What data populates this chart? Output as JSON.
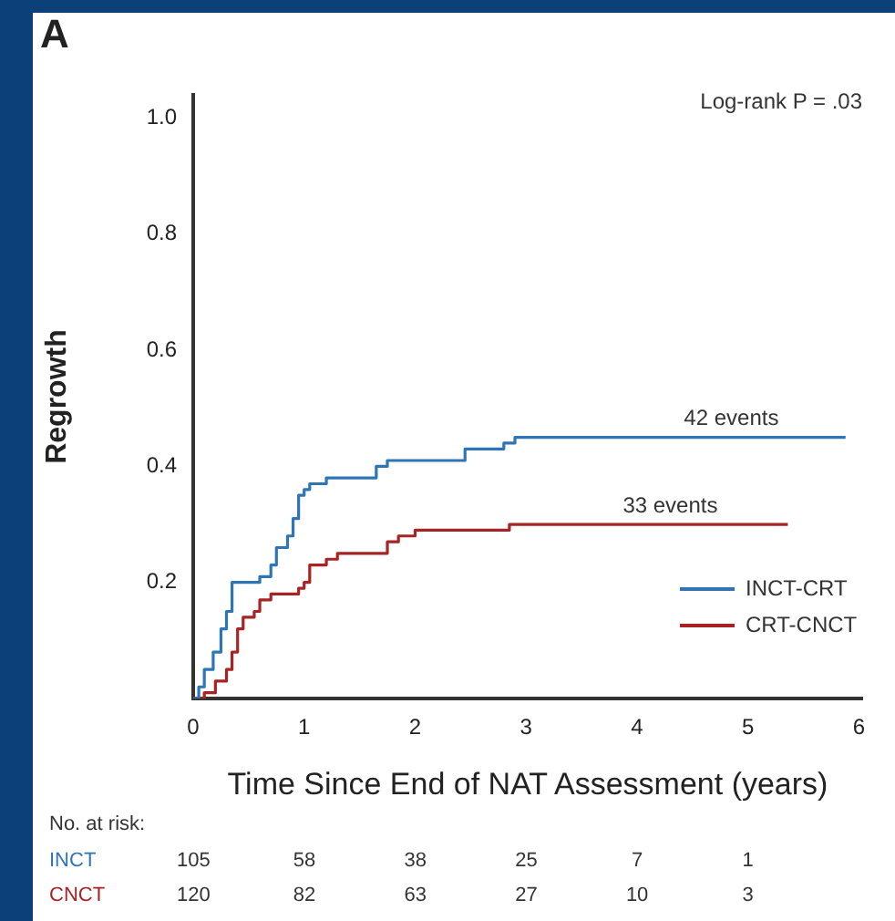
{
  "chart_data": {
    "type": "step",
    "title": "A",
    "xlabel": "Time Since End of NAT Assessment (years)",
    "ylabel": "Regrowth",
    "xlim": [
      0,
      6.03
    ],
    "xticks": [
      0,
      1,
      2,
      3,
      4,
      5,
      6
    ],
    "ylim": [
      0,
      1.04
    ],
    "yticks": [
      {
        "value": 0.2,
        "label": "0.2"
      },
      {
        "value": 0.4,
        "label": "0.4"
      },
      {
        "value": 0.6,
        "label": "0.6"
      },
      {
        "value": 0.8,
        "label": "0.8"
      },
      {
        "value": 1,
        "label": "1.0"
      }
    ],
    "grid": false,
    "legend": "bottom right",
    "tick_labels": true,
    "series": [
      {
        "name": "INCT-CRT",
        "color": "#2e75b6",
        "x": [
          0,
          0.05,
          0.1,
          0.18,
          0.25,
          0.3,
          0.35,
          0.55,
          0.6,
          0.7,
          0.75,
          0.85,
          0.9,
          0.95,
          1.0,
          1.05,
          1.2,
          1.6,
          1.65,
          1.75,
          2.4,
          2.45,
          2.75,
          2.8,
          2.9,
          5.88
        ],
        "values": [
          0,
          0.02,
          0.05,
          0.08,
          0.12,
          0.15,
          0.2,
          0.2,
          0.21,
          0.23,
          0.26,
          0.28,
          0.31,
          0.35,
          0.36,
          0.37,
          0.38,
          0.38,
          0.4,
          0.41,
          0.41,
          0.43,
          0.43,
          0.44,
          0.45,
          0.45
        ]
      },
      {
        "name": "CRT-CNCT",
        "color": "#a82424",
        "x": [
          0,
          0.1,
          0.2,
          0.3,
          0.35,
          0.4,
          0.45,
          0.55,
          0.6,
          0.7,
          0.9,
          0.95,
          1.0,
          1.05,
          1.2,
          1.3,
          1.7,
          1.75,
          1.85,
          2.0,
          2.8,
          2.85,
          5.36
        ],
        "values": [
          0,
          0.01,
          0.03,
          0.05,
          0.08,
          0.12,
          0.14,
          0.15,
          0.17,
          0.18,
          0.18,
          0.19,
          0.2,
          0.23,
          0.24,
          0.25,
          0.25,
          0.27,
          0.28,
          0.29,
          0.29,
          0.3,
          0.3
        ]
      }
    ],
    "annotations": [
      "Log-rank P = .03",
      {
        "text": "42 events",
        "x": 4.85,
        "y": 0.45
      },
      {
        "text": "33 events",
        "x": 4.3,
        "y": 0.3
      },
      "No. at risk:",
      "INCT",
      "105",
      "58",
      "38",
      "25",
      "7",
      "1",
      "CNCT",
      "120",
      "82",
      "63",
      "27",
      "10",
      "3"
    ]
  }
}
